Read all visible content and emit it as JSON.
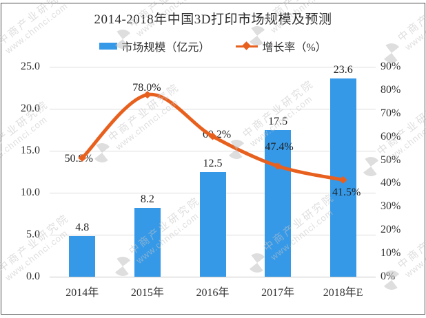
{
  "title": "2014-2018年中国3D打印市场规模及预测",
  "legend": {
    "bar_label": "市场规模（亿元）",
    "line_label": "增长率（%）"
  },
  "watermark": {
    "org": "中商产业研究院",
    "url": "www.chnnci.com"
  },
  "chart_data": {
    "type": "bar",
    "combo": "bar+line, dual axis",
    "title": "2014-2018年中国3D打印市场规模及预测",
    "categories": [
      "2014年",
      "2015年",
      "2016年",
      "2017年",
      "2018年E"
    ],
    "series": [
      {
        "name": "市场规模（亿元）",
        "type": "bar",
        "axis": "left",
        "color": "#3599e8",
        "values": [
          4.8,
          8.2,
          12.5,
          17.5,
          23.6
        ],
        "labels": [
          "4.8",
          "8.2",
          "12.5",
          "17.5",
          "23.6"
        ]
      },
      {
        "name": "增长率（%）",
        "type": "line",
        "axis": "right",
        "color": "#e8601e",
        "values": [
          50.9,
          78.0,
          60.2,
          47.4,
          41.5
        ],
        "labels": [
          "50.9%",
          "78.0%",
          "60.2%",
          "47.4%",
          "41.5%"
        ]
      }
    ],
    "left_axis": {
      "min": 0,
      "max": 25,
      "step": 5,
      "tick_labels": [
        "25.0",
        "20.0",
        "15.0",
        "10.0",
        "5.0",
        "0.0"
      ]
    },
    "right_axis": {
      "min": 0,
      "max": 90,
      "step": 10,
      "tick_labels": [
        "90%",
        "80%",
        "70%",
        "60%",
        "50%",
        "40%",
        "30%",
        "20%",
        "10%",
        "0%"
      ]
    },
    "grid": true,
    "legend_position": "top"
  }
}
